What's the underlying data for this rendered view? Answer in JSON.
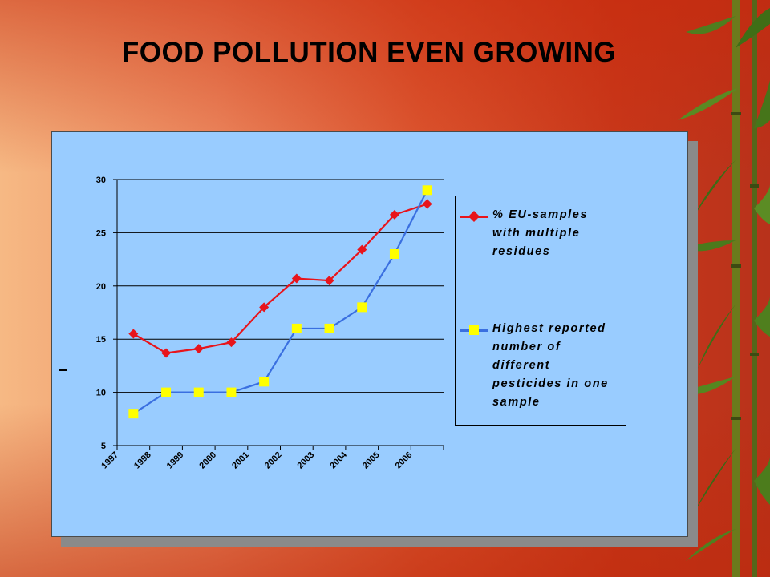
{
  "slide": {
    "title": "FOOD POLLUTION EVEN GROWING"
  },
  "colors": {
    "panel_bg": "#99ccff",
    "series_red": "#e8141b",
    "series_blue": "#3a6fe0",
    "marker_yellow": "#ffff00",
    "title_text": "#000000"
  },
  "chart_data": {
    "type": "line",
    "categories": [
      "1997",
      "1998",
      "1999",
      "2000",
      "2001",
      "2002",
      "2003",
      "2004",
      "2005",
      "2006"
    ],
    "ylim": [
      5,
      30
    ],
    "yticks": [
      5,
      10,
      15,
      20,
      25,
      30
    ],
    "grid": "horizontal",
    "legend_position": "right",
    "xlabel": "",
    "ylabel": "",
    "series": [
      {
        "name": "% EU-samples with multiple residues",
        "legend_lines": [
          "% EU-samples",
          "with multiple",
          "residues"
        ],
        "color": "#e8141b",
        "marker": "diamond-red",
        "values": [
          15.5,
          13.7,
          14.1,
          14.7,
          18.0,
          20.7,
          20.5,
          23.4,
          26.7,
          27.7
        ]
      },
      {
        "name": "Highest reported number of different pesticides in one sample",
        "legend_lines": [
          "Highest reported",
          "number of",
          "different",
          "pesticides in one",
          "sample"
        ],
        "color": "#3a6fe0",
        "marker": "square-yellow",
        "values": [
          8,
          10,
          10,
          10,
          11,
          16,
          16,
          18,
          23,
          29
        ]
      }
    ]
  }
}
